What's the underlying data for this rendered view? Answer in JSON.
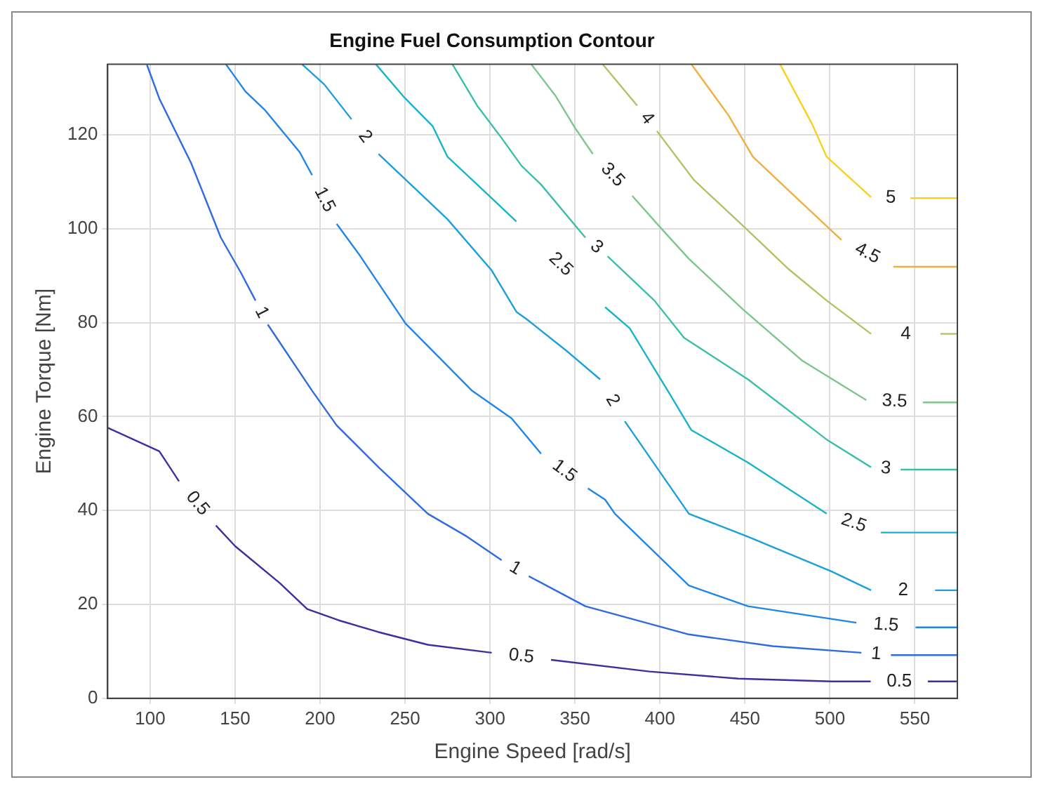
{
  "chart_data": {
    "type": "line",
    "title": "Engine Fuel Consumption Contour",
    "xlabel": "Engine Speed [rad/s]",
    "ylabel": "Engine Torque [Nm]",
    "xlim": [
      75,
      575
    ],
    "ylim": [
      0,
      135
    ],
    "xticks": [
      100,
      150,
      200,
      250,
      300,
      350,
      400,
      450,
      500,
      550
    ],
    "yticks": [
      0,
      20,
      40,
      60,
      80,
      100,
      120
    ],
    "grid": true,
    "legend": false,
    "marker": "none",
    "series": [
      {
        "name": "0.5",
        "color": "#3d2f9e",
        "x": [
          75,
          105.4,
          117,
          128,
          138.7,
          150,
          176.4,
          192.4,
          211,
          234.4,
          263.4,
          301,
          318,
          335.9,
          393.8,
          446,
          501,
          524,
          541,
          557.6,
          575
        ],
        "values": [
          57.6,
          52.6,
          46.2,
          null,
          36.8,
          32.4,
          24.5,
          19,
          16.6,
          14.1,
          11.4,
          9.7,
          null,
          8.2,
          5.7,
          4.2,
          3.6,
          3.6,
          null,
          3.6,
          3.6
        ]
      },
      {
        "name": "1",
        "color": "#2f6ae0",
        "x": [
          98.1,
          105.4,
          124.2,
          141.6,
          153.3,
          162,
          165.6,
          169.2,
          195.3,
          209.8,
          234.4,
          263.4,
          286.6,
          306.8,
          314.8,
          322.8,
          356.1,
          417,
          466.3,
          518.5,
          527,
          535.9,
          575
        ],
        "values": [
          134.9,
          127.7,
          113.9,
          98.1,
          90.7,
          84.7,
          null,
          79.6,
          65.5,
          58.1,
          49.2,
          39.3,
          34.4,
          29.4,
          null,
          26,
          19.6,
          13.6,
          11.1,
          9.7,
          null,
          9.2,
          9.2
        ]
      },
      {
        "name": "1.5",
        "color": "#1f86e8",
        "x": [
          144.6,
          156.1,
          167.7,
          188,
          195.3,
          202.5,
          209.8,
          222.8,
          250.3,
          269.2,
          289.4,
          312.7,
          330,
          343.8,
          357.6,
          367.7,
          373.5,
          417,
          451.8,
          515.6,
          533,
          550.4,
          575
        ],
        "values": [
          135,
          129.2,
          125.2,
          116.3,
          111.4,
          null,
          101,
          94.6,
          79.8,
          72.9,
          65.5,
          59.6,
          52.1,
          null,
          44.7,
          42.3,
          39.3,
          24,
          19.6,
          16.1,
          null,
          15.1,
          15.1
        ]
      },
      {
        "name": "2",
        "color": "#1ba0d8",
        "x": [
          189.4,
          202.5,
          218.5,
          226.5,
          234.4,
          275,
          301,
          315.5,
          321.3,
          345,
          364.8,
          372,
          379.3,
          417,
          451.8,
          501,
          524.2,
          543,
          561.9,
          575
        ],
        "values": [
          135,
          130.7,
          123.3,
          null,
          115.9,
          102,
          91.1,
          82.3,
          80.8,
          74,
          67.9,
          null,
          59,
          39.3,
          34.4,
          27,
          23,
          null,
          23,
          23
        ]
      },
      {
        "name": "2.5",
        "color": "#18b4c8",
        "x": [
          232.9,
          248.9,
          266.3,
          275,
          301,
          315.5,
          341.6,
          367.7,
          382.2,
          405.4,
          418.5,
          451.8,
          498.1,
          514,
          530,
          575
        ],
        "values": [
          135,
          128.2,
          121.8,
          115.3,
          106.5,
          101.5,
          null,
          83.3,
          78.8,
          65,
          57.1,
          50.2,
          39.3,
          null,
          35.3,
          35.3
        ]
      },
      {
        "name": "3",
        "color": "#3cbfa8",
        "x": [
          277.9,
          292.4,
          306.8,
          318.5,
          330,
          356.1,
          362.6,
          369.2,
          396.7,
          414.1,
          451.8,
          498.1,
          524.2,
          533,
          541.6,
          575
        ],
        "values": [
          135,
          126.2,
          119.3,
          113.4,
          109.4,
          98.1,
          null,
          94.1,
          84.7,
          76.8,
          67.9,
          55.1,
          49.2,
          null,
          48.7,
          48.7
        ]
      },
      {
        "name": "3.5",
        "color": "#7ec68a",
        "x": [
          324.3,
          338.7,
          350.3,
          360.5,
          372,
          383.7,
          399.6,
          417,
          448.9,
          483.7,
          521.4,
          538,
          554.7,
          575
        ],
        "values": [
          135,
          128.2,
          121.3,
          115.9,
          null,
          107,
          100.5,
          93.6,
          82.8,
          71.9,
          63.5,
          null,
          63,
          63
        ]
      },
      {
        "name": "4",
        "color": "#b4c066",
        "x": [
          366.3,
          386.6,
          392.4,
          398.2,
          419.9,
          451.8,
          475,
          498.1,
          524.2,
          544.6,
          565,
          575
        ],
        "values": [
          135,
          126.2,
          null,
          120.8,
          110.4,
          99.6,
          91.6,
          84.7,
          77.6,
          null,
          77.6,
          77.6
        ]
      },
      {
        "name": "4.5",
        "color": "#f0b040",
        "x": [
          418.5,
          440.2,
          454.7,
          477.9,
          506.8,
          522,
          537.3,
          575
        ],
        "values": [
          135,
          124.2,
          115.3,
          107.4,
          97.6,
          null,
          91.9,
          91.9
        ]
      },
      {
        "name": "5",
        "color": "#f8d020",
        "x": [
          470.7,
          489.5,
          498.1,
          524.2,
          535.8,
          547.4,
          575
        ],
        "values": [
          135,
          122.3,
          115.3,
          106.7,
          null,
          106.5,
          106.5
        ]
      }
    ]
  }
}
